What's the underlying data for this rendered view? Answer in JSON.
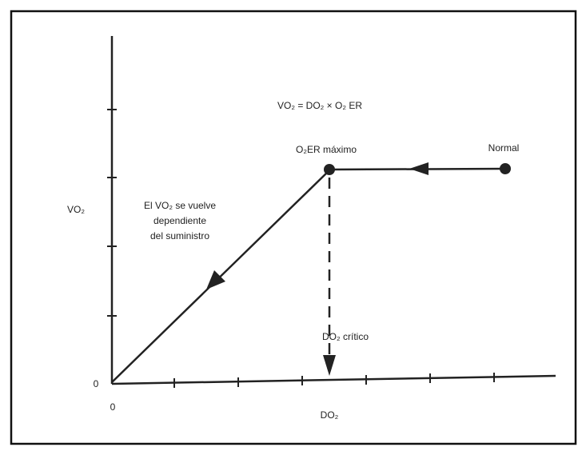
{
  "diagram": {
    "equation": "VO₂ = DO₂ × O₂ ER",
    "max_label": "O₂ER máximo",
    "normal_label": "Normal",
    "y_axis_label": "VO₂",
    "x_axis_label": "DO₂",
    "y_origin": "0",
    "x_origin": "0",
    "critical_label": "DO₂ crítico",
    "dependence_note": [
      "El VO₂ se vuelve",
      "dependiente",
      "del suministro"
    ]
  }
}
